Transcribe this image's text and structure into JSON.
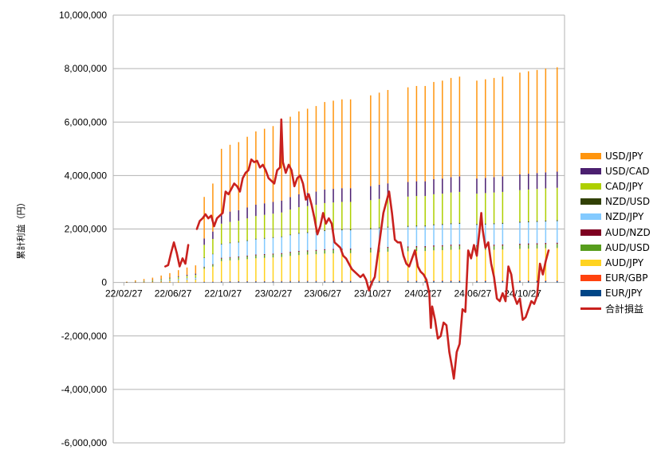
{
  "chart_data": {
    "type": "bar+line",
    "ylabel": "累計利益（円）",
    "ylim": [
      -6000000,
      10000000
    ],
    "yticks": [
      "10,000,000",
      "8,000,000",
      "6,000,000",
      "4,000,000",
      "2,000,000",
      "0",
      "-2,000,000",
      "-4,000,000",
      "-6,000,000"
    ],
    "xticks": [
      "22/02/27",
      "22/06/27",
      "22/10/27",
      "23/02/27",
      "23/06/27",
      "23/10/27",
      "24/02/27",
      "24/06/27",
      "24/10/27"
    ],
    "grid": true,
    "legend_position": "right",
    "stacked_series": [
      {
        "name": "EUR/JPY",
        "color": "#004586",
        "final": 50000
      },
      {
        "name": "EUR/GBP",
        "color": "#ff420e",
        "final": 30000
      },
      {
        "name": "AUD/JPY",
        "color": "#ffd320",
        "final": 1200000
      },
      {
        "name": "AUD/USD",
        "color": "#579d1c",
        "final": 150000
      },
      {
        "name": "AUD/NZD",
        "color": "#7e0021",
        "final": 50000
      },
      {
        "name": "NZD/JPY",
        "color": "#83caff",
        "final": 800000
      },
      {
        "name": "NZD/USD",
        "color": "#314004",
        "final": 40000
      },
      {
        "name": "CAD/JPY",
        "color": "#aecf00",
        "final": 1200000
      },
      {
        "name": "USD/CAD",
        "color": "#4b1f6f",
        "final": 600000
      },
      {
        "name": "USD/JPY",
        "color": "#ff950e",
        "final": 3880000
      }
    ],
    "bar_totals": [
      [
        "22/03/06",
        30000
      ],
      [
        "22/03/27",
        80000
      ],
      [
        "22/04/17",
        130000
      ],
      [
        "22/05/08",
        180000
      ],
      [
        "22/05/29",
        260000
      ],
      [
        "22/06/19",
        350000
      ],
      [
        "22/07/10",
        460000
      ],
      [
        "22/07/31",
        560000
      ],
      [
        "22/08/21",
        640000
      ],
      [
        "22/09/11",
        3200000
      ],
      [
        "22/10/02",
        3700000
      ],
      [
        "22/10/23",
        5000000
      ],
      [
        "22/11/13",
        5150000
      ],
      [
        "22/12/04",
        5250000
      ],
      [
        "22/12/25",
        5450000
      ],
      [
        "23/01/15",
        5650000
      ],
      [
        "23/02/05",
        5750000
      ],
      [
        "23/02/26",
        5850000
      ],
      [
        "23/03/19",
        5950000
      ],
      [
        "23/04/09",
        6200000
      ],
      [
        "23/04/30",
        6400000
      ],
      [
        "23/05/21",
        6500000
      ],
      [
        "23/06/11",
        6600000
      ],
      [
        "23/07/02",
        6750000
      ],
      [
        "23/07/23",
        6800000
      ],
      [
        "23/08/13",
        6850000
      ],
      [
        "23/09/03",
        6850000
      ],
      [
        "23/10/22",
        7000000
      ],
      [
        "23/11/12",
        7100000
      ],
      [
        "23/12/03",
        7200000
      ],
      [
        "24/01/21",
        7300000
      ],
      [
        "24/02/11",
        7350000
      ],
      [
        "24/03/03",
        7350000
      ],
      [
        "24/03/24",
        7500000
      ],
      [
        "24/04/14",
        7550000
      ],
      [
        "24/05/05",
        7650000
      ],
      [
        "24/05/26",
        7700000
      ],
      [
        "24/07/07",
        7550000
      ],
      [
        "24/07/28",
        7600000
      ],
      [
        "24/08/18",
        7650000
      ],
      [
        "24/09/08",
        7700000
      ],
      [
        "24/10/20",
        7850000
      ],
      [
        "24/11/10",
        7900000
      ],
      [
        "24/12/01",
        7950000
      ],
      [
        "24/12/22",
        8000000
      ],
      [
        "25/01/19",
        8050000
      ]
    ],
    "line_series": {
      "name": "合計損益",
      "color": "#c9211e",
      "points": [
        [
          "22/06/08",
          600000
        ],
        [
          "22/06/15",
          650000
        ],
        [
          "22/06/22",
          1100000
        ],
        [
          "22/06/29",
          1500000
        ],
        [
          "22/07/06",
          1100000
        ],
        [
          "22/07/13",
          600000
        ],
        [
          "22/07/20",
          900000
        ],
        [
          "22/07/27",
          700000
        ],
        [
          "22/08/03",
          1400000
        ],
        [
          "22/08/24",
          2000000
        ],
        [
          "22/08/31",
          2300000
        ],
        [
          "22/09/07",
          2400000
        ],
        [
          "22/09/14",
          2550000
        ],
        [
          "22/09/21",
          2400000
        ],
        [
          "22/09/28",
          2500000
        ],
        [
          "22/10/05",
          2100000
        ],
        [
          "22/10/12",
          2400000
        ],
        [
          "22/10/19",
          2500000
        ],
        [
          "22/10/26",
          2600000
        ],
        [
          "22/11/02",
          3400000
        ],
        [
          "22/11/09",
          3300000
        ],
        [
          "22/11/16",
          3500000
        ],
        [
          "22/11/23",
          3700000
        ],
        [
          "22/11/30",
          3600000
        ],
        [
          "22/12/07",
          3400000
        ],
        [
          "22/12/14",
          3900000
        ],
        [
          "22/12/21",
          4100000
        ],
        [
          "22/12/28",
          4200000
        ],
        [
          "23/01/04",
          4600000
        ],
        [
          "23/01/11",
          4500000
        ],
        [
          "23/01/18",
          4550000
        ],
        [
          "23/01/25",
          4300000
        ],
        [
          "23/02/01",
          4400000
        ],
        [
          "23/02/08",
          4200000
        ],
        [
          "23/02/15",
          3900000
        ],
        [
          "23/02/22",
          3800000
        ],
        [
          "23/03/01",
          3700000
        ],
        [
          "23/03/08",
          4200000
        ],
        [
          "23/03/15",
          4300000
        ],
        [
          "23/03/18",
          6100000
        ],
        [
          "23/03/22",
          4500000
        ],
        [
          "23/03/29",
          4100000
        ],
        [
          "23/04/05",
          4400000
        ],
        [
          "23/04/12",
          4200000
        ],
        [
          "23/04/19",
          3600000
        ],
        [
          "23/04/26",
          3900000
        ],
        [
          "23/05/03",
          4000000
        ],
        [
          "23/05/10",
          3700000
        ],
        [
          "23/05/17",
          3100000
        ],
        [
          "23/05/24",
          3300000
        ],
        [
          "23/05/31",
          2900000
        ],
        [
          "23/06/07",
          2400000
        ],
        [
          "23/06/14",
          1800000
        ],
        [
          "23/06/21",
          2100000
        ],
        [
          "23/06/28",
          2600000
        ],
        [
          "23/07/05",
          2200000
        ],
        [
          "23/07/12",
          2400000
        ],
        [
          "23/07/19",
          2200000
        ],
        [
          "23/07/26",
          1500000
        ],
        [
          "23/08/02",
          1400000
        ],
        [
          "23/08/09",
          1300000
        ],
        [
          "23/08/16",
          1000000
        ],
        [
          "23/08/23",
          900000
        ],
        [
          "23/08/30",
          700000
        ],
        [
          "23/09/06",
          500000
        ],
        [
          "23/09/13",
          400000
        ],
        [
          "23/09/20",
          300000
        ],
        [
          "23/09/27",
          200000
        ],
        [
          "23/10/04",
          300000
        ],
        [
          "23/10/11",
          100000
        ],
        [
          "23/10/18",
          -300000
        ],
        [
          "23/10/25",
          0
        ],
        [
          "23/11/01",
          200000
        ],
        [
          "23/11/08",
          1000000
        ],
        [
          "23/11/15",
          1800000
        ],
        [
          "23/11/22",
          2600000
        ],
        [
          "23/11/29",
          3000000
        ],
        [
          "23/12/06",
          3400000
        ],
        [
          "23/12/13",
          2600000
        ],
        [
          "23/12/20",
          1600000
        ],
        [
          "23/12/27",
          1500000
        ],
        [
          "24/01/03",
          1500000
        ],
        [
          "24/01/10",
          1000000
        ],
        [
          "24/01/17",
          700000
        ],
        [
          "24/01/24",
          600000
        ],
        [
          "24/01/31",
          900000
        ],
        [
          "24/02/07",
          1200000
        ],
        [
          "24/02/14",
          600000
        ],
        [
          "24/02/21",
          400000
        ],
        [
          "24/02/28",
          300000
        ],
        [
          "24/03/06",
          100000
        ],
        [
          "24/03/13",
          -400000
        ],
        [
          "24/03/17",
          -1700000
        ],
        [
          "24/03/20",
          -900000
        ],
        [
          "24/03/27",
          -1400000
        ],
        [
          "24/04/03",
          -2100000
        ],
        [
          "24/04/10",
          -2000000
        ],
        [
          "24/04/17",
          -1500000
        ],
        [
          "24/04/24",
          -1600000
        ],
        [
          "24/05/01",
          -2600000
        ],
        [
          "24/05/08",
          -3200000
        ],
        [
          "24/05/12",
          -3600000
        ],
        [
          "24/05/19",
          -2600000
        ],
        [
          "24/05/26",
          -2300000
        ],
        [
          "24/06/02",
          -1000000
        ],
        [
          "24/06/09",
          -1100000
        ],
        [
          "24/06/16",
          1200000
        ],
        [
          "24/06/23",
          900000
        ],
        [
          "24/06/30",
          1400000
        ],
        [
          "24/07/07",
          1000000
        ],
        [
          "24/07/14",
          2000000
        ],
        [
          "24/07/18",
          2600000
        ],
        [
          "24/07/21",
          2000000
        ],
        [
          "24/07/28",
          1300000
        ],
        [
          "24/08/04",
          1500000
        ],
        [
          "24/08/11",
          700000
        ],
        [
          "24/08/18",
          200000
        ],
        [
          "24/08/25",
          -600000
        ],
        [
          "24/09/01",
          -700000
        ],
        [
          "24/09/08",
          -400000
        ],
        [
          "24/09/15",
          -700000
        ],
        [
          "24/09/22",
          600000
        ],
        [
          "24/09/29",
          300000
        ],
        [
          "24/10/06",
          -500000
        ],
        [
          "24/10/13",
          -800000
        ],
        [
          "24/10/20",
          -600000
        ],
        [
          "24/10/27",
          -1400000
        ],
        [
          "24/11/03",
          -1300000
        ],
        [
          "24/11/10",
          -1000000
        ],
        [
          "24/11/17",
          -700000
        ],
        [
          "24/11/24",
          -800000
        ],
        [
          "24/12/01",
          -500000
        ],
        [
          "24/12/08",
          700000
        ],
        [
          "24/12/15",
          300000
        ],
        [
          "24/12/22",
          800000
        ],
        [
          "24/12/29",
          1200000
        ]
      ]
    }
  },
  "legend": [
    {
      "label": "USD/JPY",
      "color": "#ff950e",
      "kind": "box"
    },
    {
      "label": "USD/CAD",
      "color": "#4b1f6f",
      "kind": "box"
    },
    {
      "label": "CAD/JPY",
      "color": "#aecf00",
      "kind": "box"
    },
    {
      "label": "NZD/USD",
      "color": "#314004",
      "kind": "box"
    },
    {
      "label": "NZD/JPY",
      "color": "#83caff",
      "kind": "box"
    },
    {
      "label": "AUD/NZD",
      "color": "#7e0021",
      "kind": "box"
    },
    {
      "label": "AUD/USD",
      "color": "#579d1c",
      "kind": "box"
    },
    {
      "label": "AUD/JPY",
      "color": "#ffd320",
      "kind": "box"
    },
    {
      "label": "EUR/GBP",
      "color": "#ff420e",
      "kind": "box"
    },
    {
      "label": "EUR/JPY",
      "color": "#004586",
      "kind": "box"
    },
    {
      "label": "合計損益",
      "color": "#c9211e",
      "kind": "line"
    }
  ]
}
